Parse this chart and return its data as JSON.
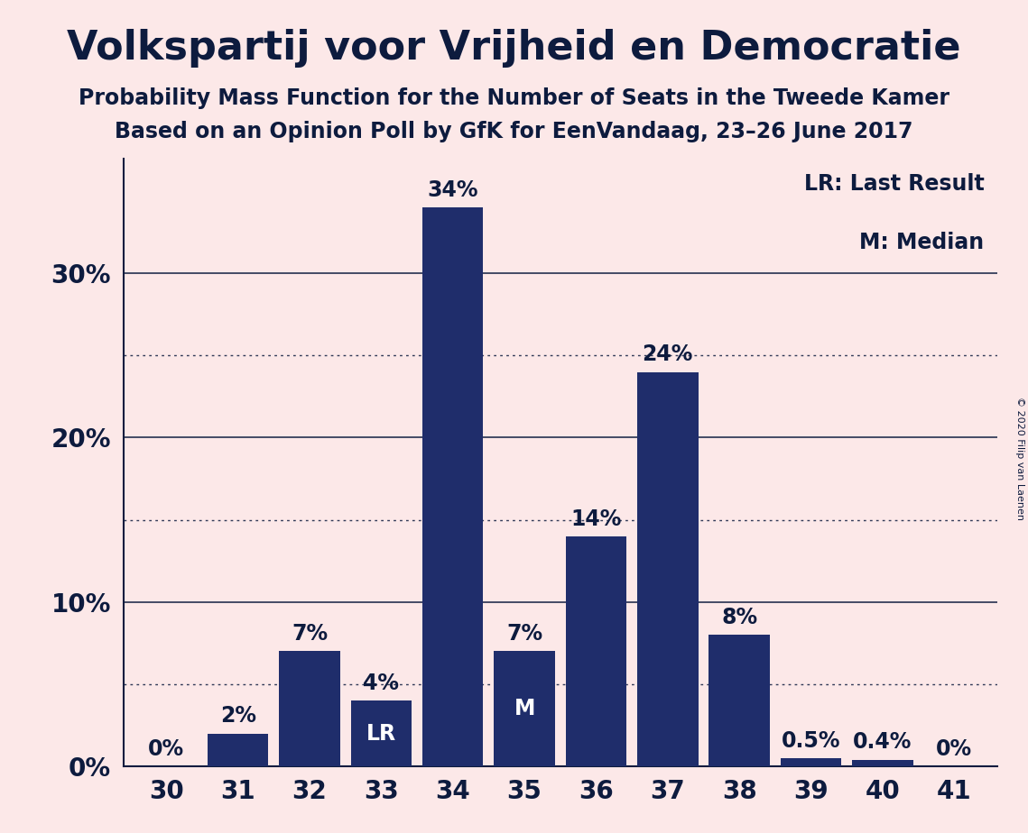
{
  "title": "Volkspartij voor Vrijheid en Democratie",
  "subtitle1": "Probability Mass Function for the Number of Seats in the Tweede Kamer",
  "subtitle2": "Based on an Opinion Poll by GfK for EenVandaag, 23–26 June 2017",
  "copyright": "© 2020 Filip van Laenen",
  "legend_lr": "LR: Last Result",
  "legend_m": "M: Median",
  "categories": [
    30,
    31,
    32,
    33,
    34,
    35,
    36,
    37,
    38,
    39,
    40,
    41
  ],
  "values": [
    0.0,
    2.0,
    7.0,
    4.0,
    34.0,
    7.0,
    14.0,
    24.0,
    8.0,
    0.5,
    0.4,
    0.0
  ],
  "labels": [
    "0%",
    "2%",
    "7%",
    "4%",
    "34%",
    "7%",
    "14%",
    "24%",
    "8%",
    "0.5%",
    "0.4%",
    "0%"
  ],
  "bar_color": "#1f2d6b",
  "background_color": "#fce8e8",
  "text_color": "#0d1b3e",
  "lr_bar": 33,
  "median_bar": 35,
  "ylim": [
    0,
    37
  ],
  "solid_gridlines": [
    10,
    20,
    30
  ],
  "dotted_gridlines": [
    5,
    15,
    25
  ],
  "ytick_positions": [
    0,
    10,
    20,
    30
  ],
  "ytick_labels": [
    "0%",
    "10%",
    "20%",
    "30%"
  ],
  "title_fontsize": 32,
  "subtitle_fontsize": 17,
  "bar_label_fontsize": 17,
  "axis_tick_fontsize": 20,
  "legend_fontsize": 17
}
